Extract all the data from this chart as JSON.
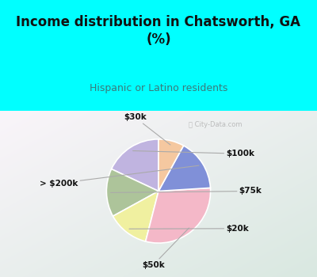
{
  "title": "Income distribution in Chatsworth, GA\n(%)",
  "subtitle": "Hispanic or Latino residents",
  "labels": [
    "$100k",
    "$75k",
    "$20k",
    "$50k",
    "> $200k",
    "$30k"
  ],
  "sizes": [
    18,
    15,
    13,
    30,
    16,
    8
  ],
  "colors": [
    "#c0b4e0",
    "#adc49a",
    "#f0f0a0",
    "#f4b8c8",
    "#8090d8",
    "#f5c8a0"
  ],
  "background_top": "#00ffff",
  "title_color": "#111111",
  "subtitle_color": "#3a7a7a",
  "label_color": "#111111",
  "startangle": 90,
  "watermark": "City-Data.com"
}
